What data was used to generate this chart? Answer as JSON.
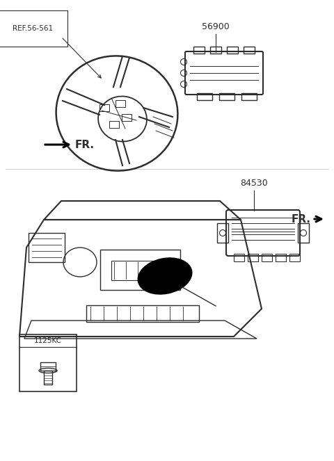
{
  "background_color": "#ffffff",
  "fig_width": 4.8,
  "fig_height": 6.63,
  "dpi": 100,
  "label_56900": "56900",
  "label_ref": "REF.56-561",
  "label_fr_top": "FR.",
  "label_84530": "84530",
  "label_fr_bottom": "FR.",
  "label_1125kc": "1125KC",
  "line_color": "#2d2d2d",
  "text_color": "#2d2d2d"
}
